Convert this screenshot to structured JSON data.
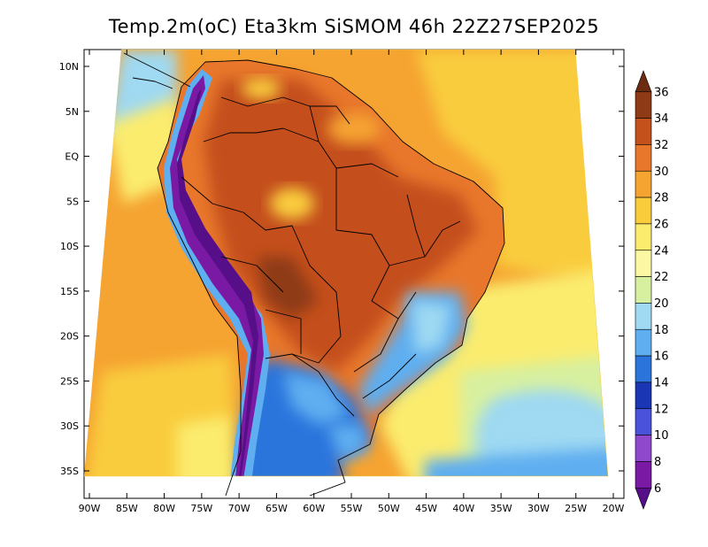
{
  "title": "Temp.2m(oC) Eta3km SiSMOM 46h 22Z27SEP2025",
  "lat_axis": {
    "labels": [
      "10N",
      "5N",
      "EQ",
      "5S",
      "10S",
      "15S",
      "20S",
      "25S",
      "30S",
      "35S"
    ],
    "values": [
      10,
      5,
      0,
      -5,
      -10,
      -15,
      -20,
      -25,
      -30,
      -35
    ]
  },
  "lon_axis": {
    "labels": [
      "90W",
      "85W",
      "80W",
      "75W",
      "70W",
      "65W",
      "60W",
      "55W",
      "50W",
      "45W",
      "40W",
      "35W",
      "30W",
      "25W",
      "20W"
    ],
    "values": [
      -90,
      -85,
      -80,
      -75,
      -70,
      -65,
      -60,
      -55,
      -50,
      -45,
      -40,
      -35,
      -30,
      -25,
      -20
    ]
  },
  "colorbar": {
    "unit": "oC",
    "labels": [
      "36",
      "34",
      "32",
      "30",
      "28",
      "26",
      "24",
      "22",
      "20",
      "18",
      "16",
      "14",
      "12",
      "10",
      "8",
      "6"
    ],
    "bins": [
      {
        "min": 36,
        "color": "#6b2c12"
      },
      {
        "min": 34,
        "color": "#8e3a16"
      },
      {
        "min": 32,
        "color": "#c4501c"
      },
      {
        "min": 30,
        "color": "#e8772c"
      },
      {
        "min": 28,
        "color": "#f5a331"
      },
      {
        "min": 26,
        "color": "#f9cc3c"
      },
      {
        "min": 24,
        "color": "#fbec6e"
      },
      {
        "min": 22,
        "color": "#fbf7a2"
      },
      {
        "min": 20,
        "color": "#d7f0a0"
      },
      {
        "min": 18,
        "color": "#9fd9f2"
      },
      {
        "min": 16,
        "color": "#5eaef0"
      },
      {
        "min": 14,
        "color": "#2a74dc"
      },
      {
        "min": 12,
        "color": "#1a36b4"
      },
      {
        "min": 10,
        "color": "#4a52dc"
      },
      {
        "min": 8,
        "color": "#8f48cc"
      },
      {
        "min": 6,
        "color": "#7a1aa4"
      },
      {
        "min": 4,
        "color": "#560f88"
      }
    ]
  },
  "colors": {
    "ocean_warm": "#f5a331",
    "ocean_mild": "#f9cc3c",
    "ocean_cool": "#fbec6e",
    "land_hot": "#c4501c",
    "land_warm": "#e8772c",
    "andes_cold": "#7a1aa4",
    "south_cold": "#2a74dc"
  }
}
